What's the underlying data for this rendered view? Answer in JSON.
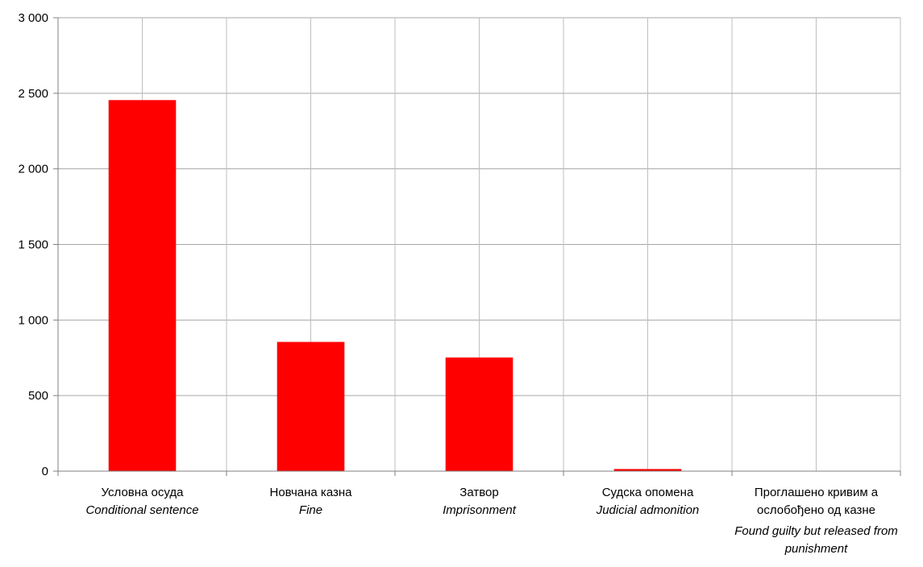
{
  "chart_data": {
    "type": "bar",
    "title": "",
    "xlabel": "",
    "ylabel": "",
    "ylim": [
      0,
      3000
    ],
    "yticks": [
      0,
      500,
      1000,
      1500,
      2000,
      2500,
      3000
    ],
    "ytick_labels": [
      "0",
      "500",
      "1 000",
      "1 500",
      "2 000",
      "2 500",
      "3 000"
    ],
    "grid": true,
    "bar_color": "#ff0000",
    "categories": [
      {
        "sr": [
          "Условна осуда"
        ],
        "en": [
          "Conditional sentence"
        ]
      },
      {
        "sr": [
          "Новчана казна"
        ],
        "en": [
          "Fine"
        ]
      },
      {
        "sr": [
          "Затвор"
        ],
        "en": [
          "Imprisonment"
        ]
      },
      {
        "sr": [
          "Судска опомена"
        ],
        "en": [
          "Judicial admonition"
        ]
      },
      {
        "sr": [
          "Проглашено кривим а",
          "ослобођено од казне"
        ],
        "en": [
          "Found guilty but released from",
          "punishment"
        ]
      }
    ],
    "values": [
      2455,
      855,
      752,
      14,
      0
    ]
  }
}
